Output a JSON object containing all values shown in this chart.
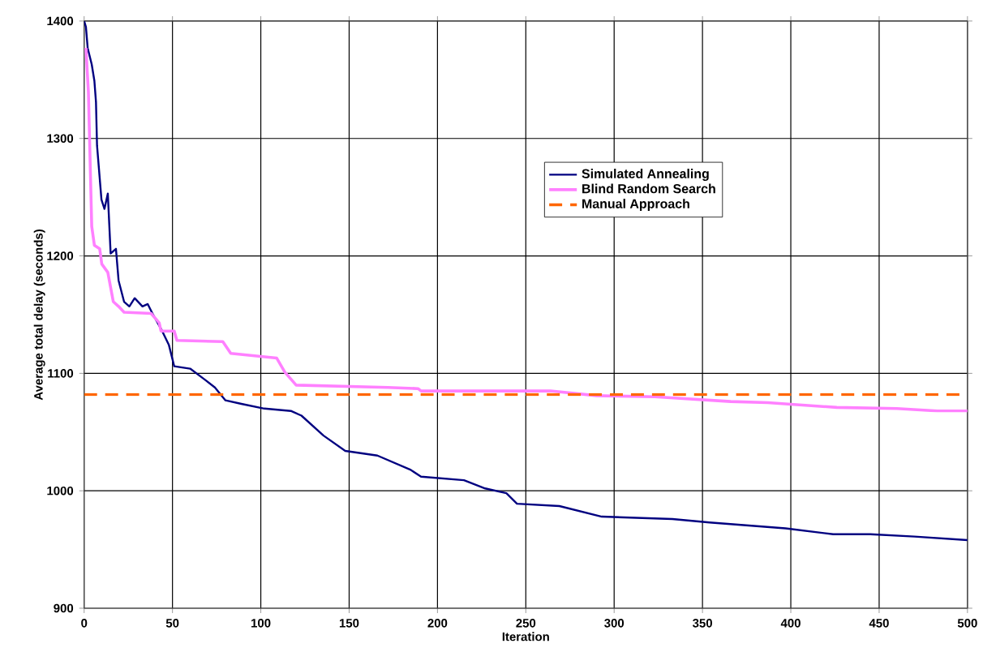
{
  "chart_data": {
    "type": "line",
    "xlabel": "Iteration",
    "ylabel": "Average total delay (seconds)",
    "xlim": [
      0,
      500
    ],
    "ylim": [
      900,
      1400
    ],
    "xticks": [
      0,
      50,
      100,
      150,
      200,
      250,
      300,
      350,
      400,
      450,
      500
    ],
    "yticks": [
      900,
      1000,
      1100,
      1200,
      1300,
      1400
    ],
    "grid": true,
    "legend": "top right",
    "marker": "none",
    "series": [
      {
        "name": "Simulated Annealing",
        "color": "#000080",
        "line_style": "solid",
        "x": [
          0,
          1,
          2,
          4.3,
          5.8,
          6.7,
          7.3,
          9.8,
          11.5,
          13.4,
          15,
          18,
          19.5,
          22.6,
          25.6,
          28.6,
          33,
          36,
          39,
          43.5,
          48,
          51,
          60,
          68,
          74,
          80,
          89,
          102,
          117,
          123,
          135.5,
          147.8,
          166,
          184.6,
          190.7,
          215,
          227,
          239,
          245,
          269,
          293,
          333,
          354,
          397,
          424,
          445,
          470,
          500
        ],
        "values": [
          1400,
          1395,
          1377,
          1363,
          1349,
          1331,
          1294,
          1248,
          1240,
          1253,
          1202,
          1206,
          1179,
          1161,
          1157,
          1164,
          1157,
          1159,
          1150,
          1138,
          1124,
          1106,
          1104,
          1095,
          1088,
          1077,
          1074,
          1070,
          1068,
          1064,
          1047,
          1034,
          1030,
          1018,
          1012,
          1009,
          1002,
          998,
          989,
          987,
          978,
          976,
          973,
          968,
          963,
          963,
          961,
          958
        ]
      },
      {
        "name": "Blind Random Search",
        "color": "#ff80ff",
        "line_style": "solid",
        "x": [
          1,
          2.4,
          4.3,
          5.8,
          8.8,
          10,
          13.4,
          16.5,
          19.5,
          22.6,
          37.9,
          42.5,
          43.5,
          51,
          52.5,
          78.5,
          83,
          109,
          113.6,
          120,
          172,
          189,
          190.7,
          264,
          290,
          323,
          366,
          387,
          426,
          460,
          483,
          500
        ],
        "values": [
          1377,
          1340,
          1225,
          1209,
          1206,
          1193,
          1186,
          1161,
          1157,
          1152,
          1151,
          1143,
          1136,
          1136,
          1128,
          1127,
          1117,
          1113,
          1101,
          1090,
          1088,
          1087,
          1085,
          1085,
          1081,
          1080,
          1076,
          1075,
          1071,
          1070,
          1068,
          1068
        ]
      },
      {
        "name": "Manual Approach",
        "color": "#ff6600",
        "line_style": "dashed",
        "x": [
          0,
          500
        ],
        "values": [
          1082,
          1082
        ]
      }
    ]
  }
}
